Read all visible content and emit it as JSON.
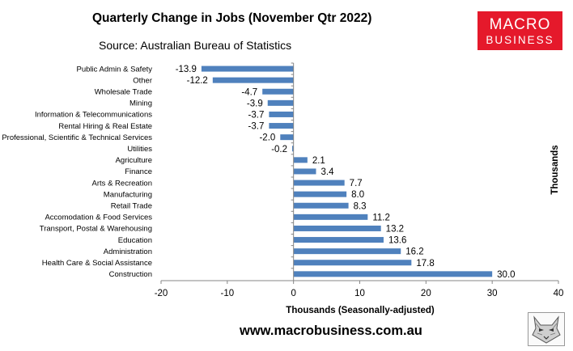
{
  "header": {
    "title": "Quarterly Change in Jobs (November Qtr 2022)",
    "subtitle": "Source: Australian Bureau of Statistics"
  },
  "logo": {
    "line1": "MACRO",
    "line2": "BUSINESS",
    "color": "#e5192b"
  },
  "footer": {
    "url": "www.macrobusiness.com.au"
  },
  "chart_data": {
    "type": "bar",
    "orientation": "horizontal",
    "categories": [
      "Public Admin & Safety",
      "Other",
      "Wholesale Trade",
      "Mining",
      "Information & Telecommunications",
      "Rental Hiring & Real Estate",
      "Professional, Scientific & Technical Services",
      "Utilities",
      "Agriculture",
      "Finance",
      "Arts & Recreation",
      "Manufacturing",
      "Retail Trade",
      "Accomodation & Food Services",
      "Transport, Postal & Warehousing",
      "Education",
      "Administration",
      "Health Care & Social Assistance",
      "Construction"
    ],
    "values": [
      -13.9,
      -12.2,
      -4.7,
      -3.9,
      -3.7,
      -3.7,
      -2.0,
      -0.2,
      2.1,
      3.4,
      7.7,
      8.0,
      8.3,
      11.2,
      13.2,
      13.6,
      16.2,
      17.8,
      30.0
    ],
    "value_labels": [
      "-13.9",
      "-12.2",
      "-4.7",
      "-3.9",
      "-3.7",
      "-3.7",
      "-2.0",
      "-0.2",
      "2.1",
      "3.4",
      "7.7",
      "8.0",
      "8.3",
      "11.2",
      "13.2",
      "13.6",
      "16.2",
      "17.8",
      "30.0"
    ],
    "xlabel": "Thousands (Seasonally-adjusted)",
    "ylabel_right": "Thousands",
    "xlim": [
      -20,
      40
    ],
    "xticks": [
      -20,
      -10,
      0,
      10,
      20,
      30,
      40
    ],
    "grid": false,
    "bar_color": "#4f81bd"
  }
}
